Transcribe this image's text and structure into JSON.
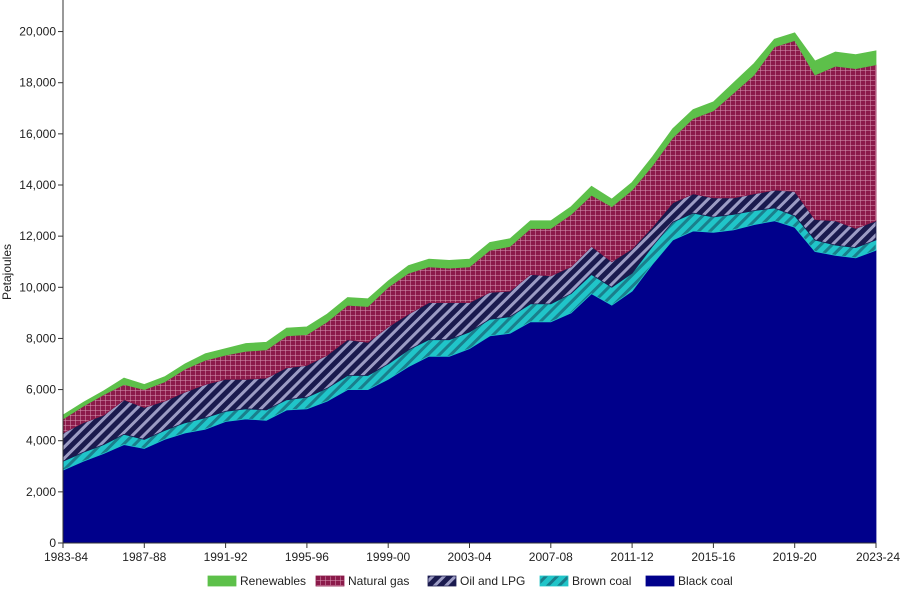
{
  "chart_data": {
    "type": "area",
    "stacked": true,
    "ylabel": "Petajoules",
    "xlabel": "",
    "ylim": [
      0,
      21000
    ],
    "yticks": [
      0,
      2000,
      4000,
      6000,
      8000,
      10000,
      12000,
      14000,
      16000,
      18000,
      20000
    ],
    "ytick_labels": [
      "0",
      "2,000",
      "4,000",
      "6,000",
      "8,000",
      "10,000",
      "12,000",
      "14,000",
      "16,000",
      "18,000",
      "20,000"
    ],
    "x_labels_shown": [
      "1983-84",
      "1987-88",
      "1991-92",
      "1995-96",
      "1999-00",
      "2003-04",
      "2007-08",
      "2011-12",
      "2015-16",
      "2019-20",
      "2023-24"
    ],
    "grid": false,
    "legend_position": "bottom",
    "x": [
      "1983-84",
      "1984-85",
      "1985-86",
      "1986-87",
      "1987-88",
      "1988-89",
      "1989-90",
      "1990-91",
      "1991-92",
      "1992-93",
      "1993-94",
      "1994-95",
      "1995-96",
      "1996-97",
      "1997-98",
      "1998-99",
      "1999-00",
      "2000-01",
      "2001-02",
      "2002-03",
      "2003-04",
      "2004-05",
      "2005-06",
      "2006-07",
      "2007-08",
      "2008-09",
      "2009-10",
      "2010-11",
      "2011-12",
      "2012-13",
      "2013-14",
      "2014-15",
      "2015-16",
      "2016-17",
      "2017-18",
      "2018-19",
      "2019-20",
      "2020-21",
      "2021-22",
      "2022-23",
      "2023-24"
    ],
    "series": [
      {
        "name": "Black coal",
        "color": "#00008b",
        "pattern": "solid",
        "values": [
          2850,
          3200,
          3500,
          3850,
          3700,
          4050,
          4300,
          4450,
          4750,
          4850,
          4800,
          5200,
          5250,
          5550,
          6000,
          6000,
          6400,
          6900,
          7300,
          7300,
          7600,
          8100,
          8200,
          8650,
          8650,
          9000,
          9750,
          9300,
          9850,
          10900,
          11850,
          12200,
          12150,
          12250,
          12450,
          12600,
          12350,
          11400,
          11250,
          11150,
          11450
        ]
      },
      {
        "name": "Brown coal",
        "color": "#20c5c9",
        "pattern": "diagonal",
        "values": [
          350,
          350,
          350,
          400,
          350,
          350,
          400,
          450,
          400,
          400,
          400,
          400,
          450,
          500,
          550,
          550,
          600,
          650,
          650,
          650,
          650,
          650,
          650,
          700,
          700,
          750,
          750,
          700,
          700,
          700,
          700,
          700,
          600,
          600,
          550,
          500,
          450,
          450,
          400,
          400,
          400
        ]
      },
      {
        "name": "Oil and LPG",
        "color": "#1a1a4e",
        "pattern": "diagonal",
        "values": [
          1100,
          1150,
          1150,
          1350,
          1250,
          1150,
          1200,
          1300,
          1250,
          1150,
          1250,
          1250,
          1250,
          1300,
          1400,
          1300,
          1450,
          1400,
          1450,
          1450,
          1150,
          1050,
          1000,
          1150,
          1100,
          1050,
          1100,
          1000,
          950,
          750,
          750,
          750,
          750,
          650,
          650,
          700,
          950,
          800,
          950,
          750,
          750
        ]
      },
      {
        "name": "Natural gas",
        "color": "#8b1a4a",
        "pattern": "grid",
        "values": [
          550,
          650,
          800,
          600,
          700,
          750,
          900,
          950,
          950,
          1100,
          1100,
          1250,
          1200,
          1300,
          1350,
          1400,
          1550,
          1600,
          1400,
          1350,
          1400,
          1650,
          1750,
          1800,
          1850,
          2050,
          2000,
          2150,
          2300,
          2400,
          2550,
          2950,
          3400,
          4100,
          4650,
          5600,
          5900,
          5650,
          6050,
          6250,
          6100
        ]
      },
      {
        "name": "Renewables",
        "color": "#5dc04a",
        "pattern": "solid",
        "values": [
          150,
          150,
          150,
          250,
          200,
          200,
          200,
          250,
          250,
          300,
          300,
          300,
          300,
          300,
          300,
          300,
          250,
          300,
          300,
          300,
          300,
          300,
          300,
          300,
          300,
          300,
          350,
          300,
          300,
          350,
          350,
          350,
          350,
          400,
          450,
          300,
          300,
          550,
          550,
          550,
          550
        ]
      }
    ],
    "legend_order": [
      "Renewables",
      "Natural gas",
      "Oil and LPG",
      "Brown coal",
      "Black coal"
    ]
  }
}
